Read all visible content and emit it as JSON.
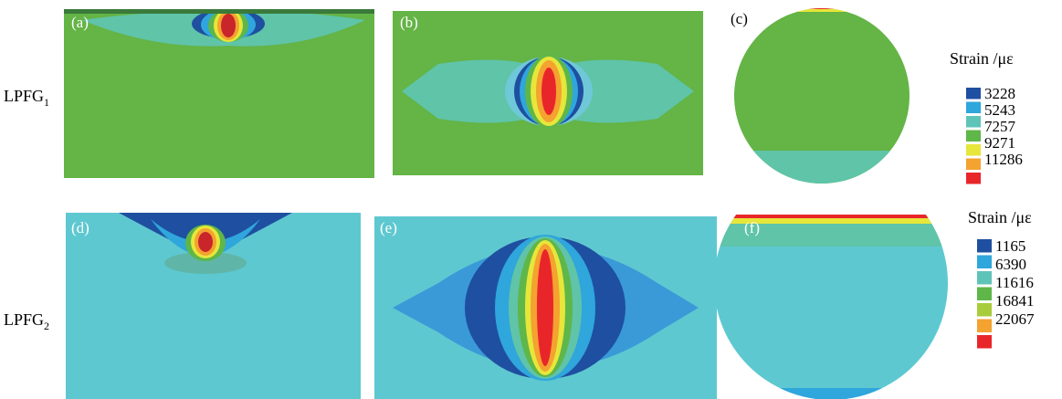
{
  "rows": [
    {
      "label": "LPFG",
      "subscript": "1",
      "panels": [
        "(a)",
        "(b)",
        "(c)"
      ]
    },
    {
      "label": "LPFG",
      "subscript": "2",
      "panels": [
        "(d)",
        "(e)",
        "(f)"
      ]
    }
  ],
  "legends": [
    {
      "title": "Strain /με",
      "entries": [
        {
          "label": "3228",
          "color": "#1f4fa0"
        },
        {
          "label": "5243",
          "color": "#2fa6dc"
        },
        {
          "label": "7257",
          "color": "#5fc4b8"
        },
        {
          "label": "9271",
          "color": "#5fb649"
        },
        {
          "label": "11286",
          "color": "#e7e63a"
        },
        {
          "label": "",
          "color": "#f4a230"
        },
        {
          "label": "",
          "color": "#e8262a"
        }
      ]
    },
    {
      "title": "Strain /με",
      "entries": [
        {
          "label": "1165",
          "color": "#1f4fa0"
        },
        {
          "label": "6390",
          "color": "#2fa6dc"
        },
        {
          "label": "11616",
          "color": "#5fc4b8"
        },
        {
          "label": "16841",
          "color": "#5fb649"
        },
        {
          "label": "22067",
          "color": "#a8cc3c"
        },
        {
          "label": "",
          "color": "#f4a230"
        },
        {
          "label": "",
          "color": "#e8262a"
        }
      ]
    }
  ]
}
